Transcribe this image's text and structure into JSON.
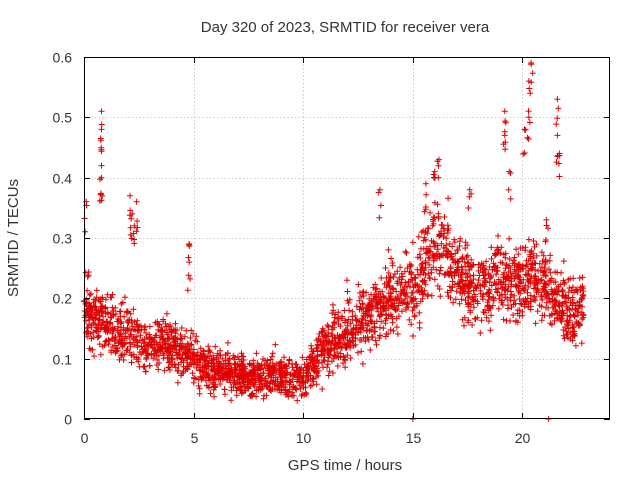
{
  "chart_data": {
    "type": "scatter",
    "title": "Day 320 of 2023, SRMTID for receiver vera",
    "xlabel": "GPS time / hours",
    "ylabel": "SRMTID / TECUs",
    "xlim": [
      0,
      24
    ],
    "ylim": [
      0,
      0.6
    ],
    "x_ticks": [
      0,
      5,
      10,
      15,
      20
    ],
    "x_tick_labels": [
      "0",
      "5",
      "10",
      "15",
      "20"
    ],
    "y_ticks": [
      0,
      0.1,
      0.2,
      0.3,
      0.4,
      0.5,
      0.6
    ],
    "y_tick_labels": [
      "0",
      "0.1",
      "0.2",
      "0.3",
      "0.4",
      "0.5",
      "0.6"
    ],
    "grid": true,
    "marker": "+",
    "marker_color": "#e00000",
    "series": [
      {
        "name": "SRMTID",
        "trend": [
          [
            0.0,
            0.2
          ],
          [
            0.5,
            0.16
          ],
          [
            1.0,
            0.16
          ],
          [
            1.5,
            0.15
          ],
          [
            2.0,
            0.14
          ],
          [
            2.5,
            0.13
          ],
          [
            3.0,
            0.12
          ],
          [
            3.5,
            0.12
          ],
          [
            4.0,
            0.12
          ],
          [
            4.5,
            0.11
          ],
          [
            5.0,
            0.1
          ],
          [
            5.5,
            0.085
          ],
          [
            6.0,
            0.08
          ],
          [
            6.5,
            0.075
          ],
          [
            7.0,
            0.075
          ],
          [
            7.5,
            0.07
          ],
          [
            8.0,
            0.07
          ],
          [
            8.5,
            0.075
          ],
          [
            9.0,
            0.075
          ],
          [
            9.5,
            0.07
          ],
          [
            10.0,
            0.065
          ],
          [
            10.5,
            0.09
          ],
          [
            11.0,
            0.12
          ],
          [
            11.5,
            0.13
          ],
          [
            12.0,
            0.14
          ],
          [
            12.5,
            0.16
          ],
          [
            13.0,
            0.17
          ],
          [
            13.5,
            0.19
          ],
          [
            14.0,
            0.2
          ],
          [
            14.5,
            0.21
          ],
          [
            15.0,
            0.22
          ],
          [
            15.5,
            0.25
          ],
          [
            16.0,
            0.29
          ],
          [
            16.5,
            0.28
          ],
          [
            17.0,
            0.24
          ],
          [
            17.5,
            0.22
          ],
          [
            18.0,
            0.21
          ],
          [
            18.5,
            0.22
          ],
          [
            19.0,
            0.24
          ],
          [
            19.5,
            0.22
          ],
          [
            20.0,
            0.23
          ],
          [
            20.5,
            0.24
          ],
          [
            21.0,
            0.22
          ],
          [
            21.5,
            0.2
          ],
          [
            22.0,
            0.18
          ],
          [
            22.5,
            0.17
          ],
          [
            22.8,
            0.2
          ]
        ],
        "spikes": [
          [
            0.1,
            0.36
          ],
          [
            0.8,
            0.51
          ],
          [
            0.8,
            0.48
          ],
          [
            0.8,
            0.42
          ],
          [
            0.8,
            0.4
          ],
          [
            2.1,
            0.37
          ],
          [
            2.2,
            0.34
          ],
          [
            2.4,
            0.36
          ],
          [
            2.3,
            0.32
          ],
          [
            4.8,
            0.29
          ],
          [
            4.8,
            0.26
          ],
          [
            15.6,
            0.39
          ],
          [
            16.2,
            0.43
          ],
          [
            16.0,
            0.41
          ],
          [
            17.6,
            0.38
          ],
          [
            19.2,
            0.47
          ],
          [
            19.2,
            0.51
          ],
          [
            19.4,
            0.41
          ],
          [
            20.1,
            0.48
          ],
          [
            20.3,
            0.56
          ],
          [
            20.4,
            0.59
          ],
          [
            20.3,
            0.5
          ],
          [
            21.6,
            0.53
          ],
          [
            21.6,
            0.47
          ],
          [
            21.7,
            0.44
          ],
          [
            21.1,
            0.33
          ],
          [
            13.5,
            0.38
          ],
          [
            12.0,
            0.23
          ],
          [
            15.0,
            0.0
          ],
          [
            21.2,
            0.0
          ]
        ]
      }
    ]
  }
}
